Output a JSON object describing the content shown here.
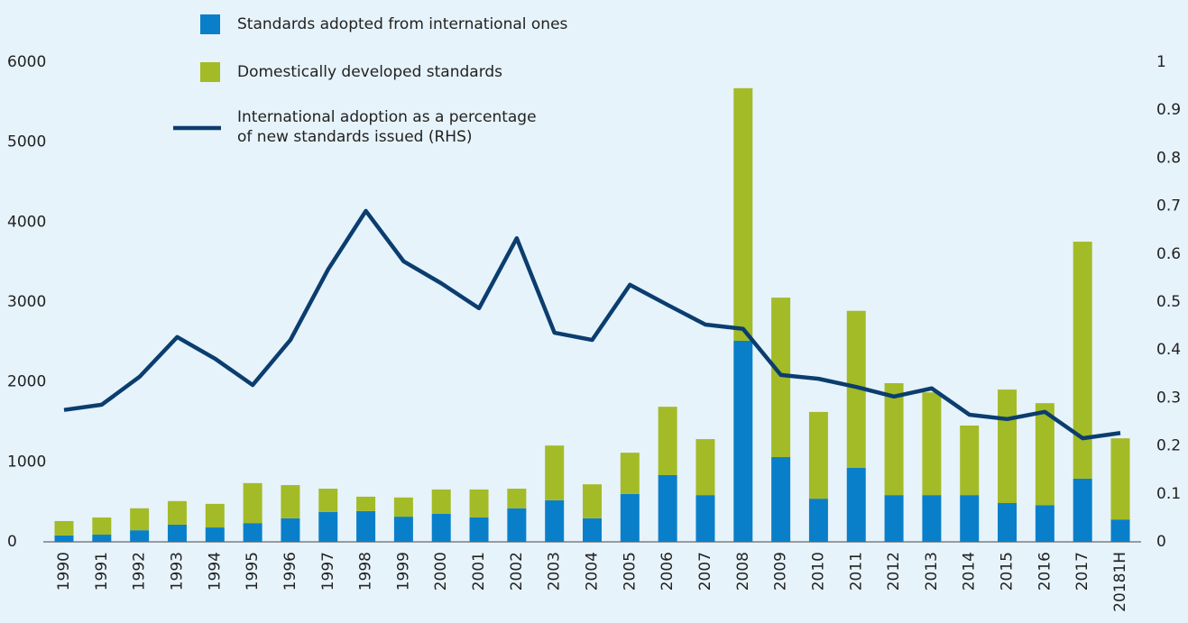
{
  "chart_data": {
    "type": "bar_line",
    "categories": [
      "1990",
      "1991",
      "1992",
      "1993",
      "1994",
      "1995",
      "1996",
      "1997",
      "1998",
      "1999",
      "2000",
      "2001",
      "2002",
      "2003",
      "2004",
      "2005",
      "2006",
      "2007",
      "2008",
      "2009",
      "2010",
      "2011",
      "2012",
      "2013",
      "2014",
      "2015",
      "2016",
      "2017",
      "20181H"
    ],
    "series": [
      {
        "name": "Standards adopted from international ones",
        "color": "#0a7fc9",
        "type": "bar",
        "values": [
          80,
          90,
          145,
          215,
          180,
          235,
          295,
          375,
          385,
          315,
          350,
          305,
          420,
          520,
          295,
          600,
          835,
          585,
          2515,
          1060,
          540,
          925,
          585,
          585,
          585,
          485,
          460,
          790,
          280
        ]
      },
      {
        "name": "Domestically developed standards",
        "color": "#a3bb27",
        "type": "bar",
        "values": [
          180,
          215,
          275,
          295,
          295,
          500,
          415,
          290,
          180,
          240,
          305,
          350,
          245,
          685,
          425,
          515,
          855,
          700,
          3160,
          1995,
          1085,
          1965,
          1400,
          1285,
          870,
          1420,
          1275,
          2965,
          1015
        ]
      },
      {
        "name": "International adoption as a percentage\nof new standards issued (RHS)",
        "color": "#0b3d6e",
        "type": "line",
        "axis": "y2",
        "values": [
          0.275,
          0.286,
          0.344,
          0.427,
          0.382,
          0.327,
          0.421,
          0.568,
          0.69,
          0.585,
          0.539,
          0.487,
          0.633,
          0.436,
          0.421,
          0.536,
          0.494,
          0.453,
          0.444,
          0.348,
          0.34,
          0.323,
          0.303,
          0.32,
          0.265,
          0.256,
          0.271,
          0.216,
          0.227
        ]
      }
    ],
    "ylim": [
      0,
      6000
    ],
    "yticks": [
      0,
      1000,
      2000,
      3000,
      4000,
      5000,
      6000
    ],
    "y2lim": [
      0,
      1
    ],
    "y2ticks": [
      0,
      0.1,
      0.2,
      0.3,
      0.4,
      0.5,
      0.6,
      0.7,
      0.8,
      0.9,
      1
    ],
    "stacked": true
  }
}
